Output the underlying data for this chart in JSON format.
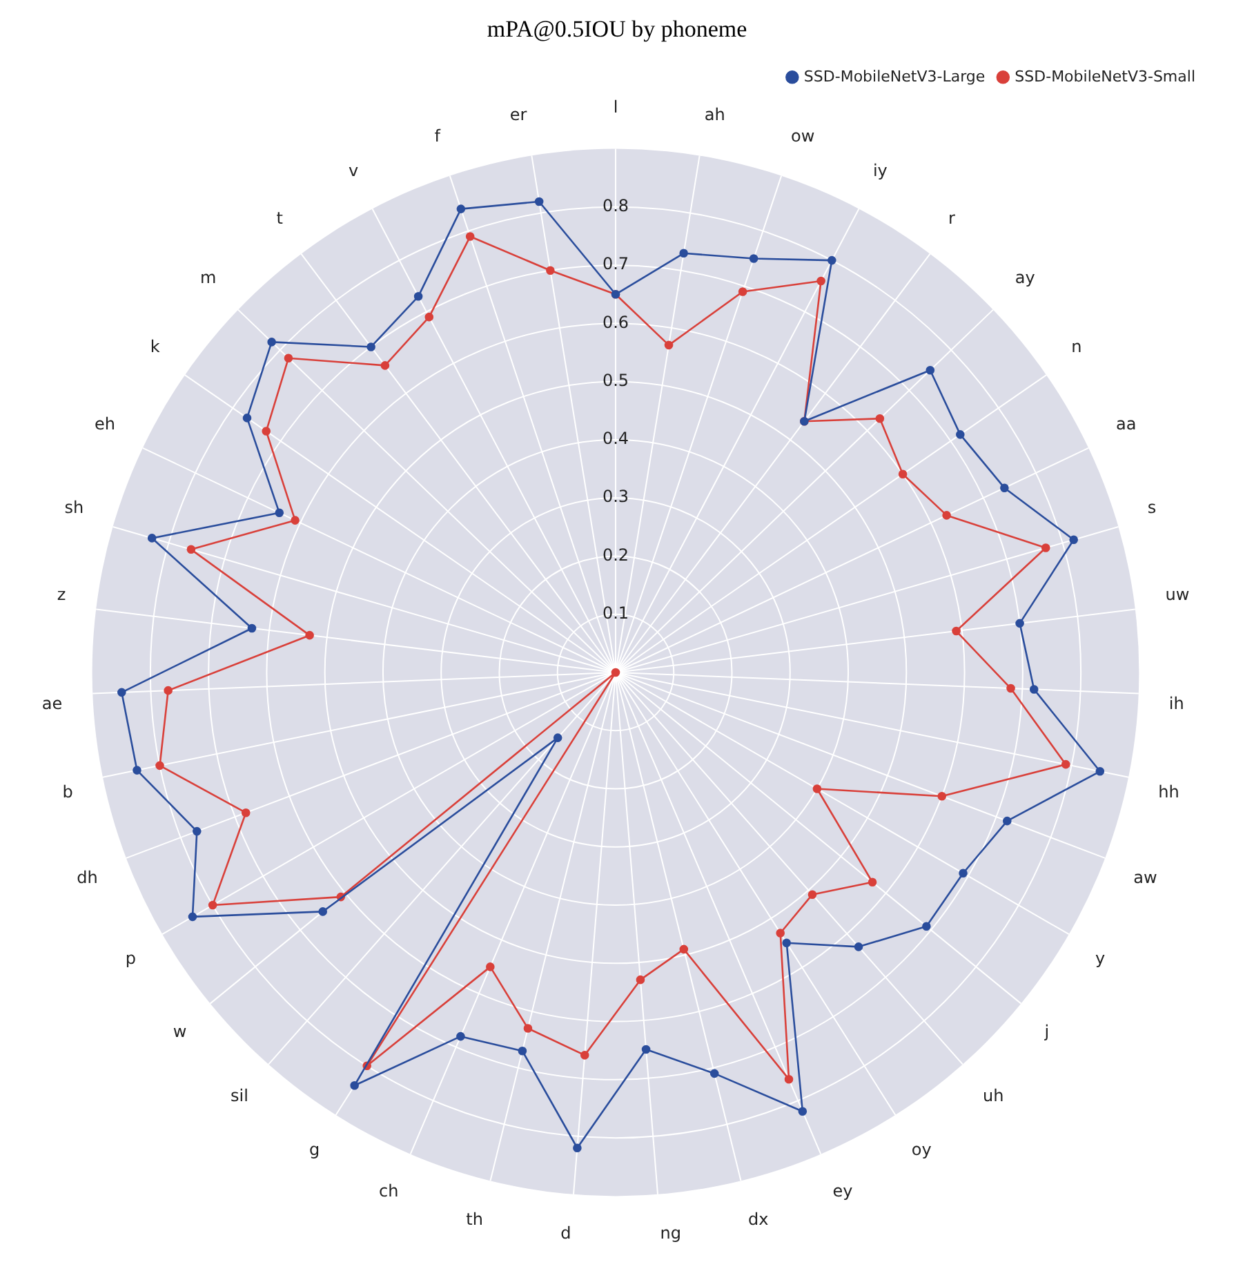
{
  "chart_data": {
    "type": "radar",
    "title": "mPA@0.5IOU by phoneme",
    "categories": [
      "l",
      "ah",
      "ow",
      "iy",
      "r",
      "ay",
      "n",
      "aa",
      "s",
      "uw",
      "ih",
      "hh",
      "aw",
      "y",
      "j",
      "uh",
      "oy",
      "ey",
      "dx",
      "ng",
      "d",
      "th",
      "ch",
      "g",
      "sil",
      "w",
      "p",
      "dh",
      "b",
      "ae",
      "z",
      "sh",
      "eh",
      "k",
      "m",
      "t",
      "v",
      "f",
      "er"
    ],
    "series": [
      {
        "name": "SSD-MobileNetV3-Large",
        "color": "#2a4d9c",
        "values": [
          0.65,
          0.73,
          0.75,
          0.8,
          0.54,
          0.75,
          0.72,
          0.74,
          0.82,
          0.7,
          0.72,
          0.85,
          0.72,
          0.69,
          0.69,
          0.63,
          0.55,
          0.82,
          0.71,
          0.65,
          0.82,
          0.67,
          0.68,
          0.84,
          0.15,
          0.65,
          0.84,
          0.77,
          0.84,
          0.85,
          0.63,
          0.83,
          0.64,
          0.77,
          0.82,
          0.7,
          0.73,
          0.84,
          0.82
        ]
      },
      {
        "name": "SSD-MobileNetV3-Small",
        "color": "#d9403a",
        "values": [
          0.65,
          0.57,
          0.69,
          0.76,
          0.54,
          0.63,
          0.6,
          0.63,
          0.77,
          0.59,
          0.68,
          0.79,
          0.6,
          0.4,
          0.57,
          0.51,
          0.53,
          0.76,
          0.49,
          0.53,
          0.66,
          0.63,
          0.55,
          0.8,
          0,
          0.61,
          0.8,
          0.68,
          0.8,
          0.77,
          0.53,
          0.76,
          0.61,
          0.73,
          0.78,
          0.66,
          0.69,
          0.79,
          0.7
        ]
      }
    ],
    "ylim": [
      0,
      0.9
    ],
    "yticks": [
      0.1,
      0.2,
      0.3,
      0.4,
      0.5,
      0.6,
      0.7,
      0.8
    ],
    "grid": true,
    "legend": "top right",
    "marker": "circle",
    "line_style": "solid"
  }
}
